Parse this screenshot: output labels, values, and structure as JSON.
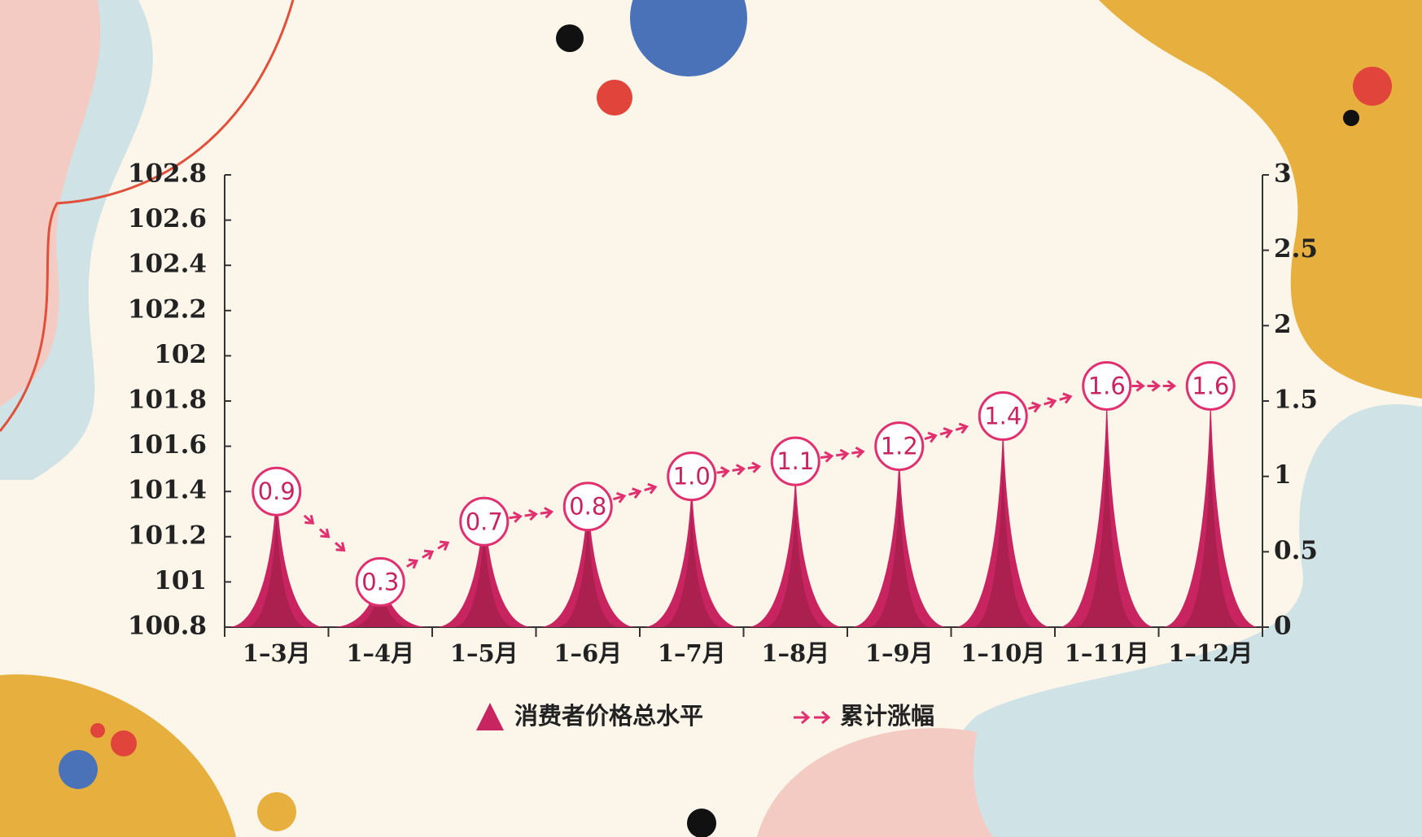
{
  "chart_data": {
    "type": "spike-line",
    "categories": [
      "1–3月",
      "1–4月",
      "1–5月",
      "1–6月",
      "1–7月",
      "1–8月",
      "1–9月",
      "1–10月",
      "1–11月",
      "1–12月"
    ],
    "series": [
      {
        "name": "消费者价格总水平",
        "type": "spike",
        "color": "#c8245f",
        "axis": "y",
        "values": [
          101.45,
          101.08,
          101.39,
          101.42,
          101.46,
          101.51,
          101.6,
          101.73,
          101.86,
          101.86
        ]
      },
      {
        "name": "累计涨幅",
        "type": "line",
        "color": "#e0306f",
        "axis": "y2",
        "values": [
          0.9,
          0.3,
          0.7,
          0.8,
          1.0,
          1.1,
          1.2,
          1.4,
          1.6,
          1.6
        ],
        "value_labels": [
          "0.9",
          "0.3",
          "0.7",
          "0.8",
          "1.0",
          "1.1",
          "1.2",
          "1.4",
          "1.6",
          "1.6"
        ]
      }
    ],
    "ylim": [
      100.8,
      102.8
    ],
    "yticks": [
      100.8,
      101,
      101.2,
      101.4,
      101.6,
      101.8,
      102,
      102.2,
      102.4,
      102.6,
      102.8
    ],
    "y2lim": [
      0,
      3
    ],
    "y2ticks": [
      0,
      0.5,
      1,
      1.5,
      2,
      2.5,
      3
    ]
  }
}
